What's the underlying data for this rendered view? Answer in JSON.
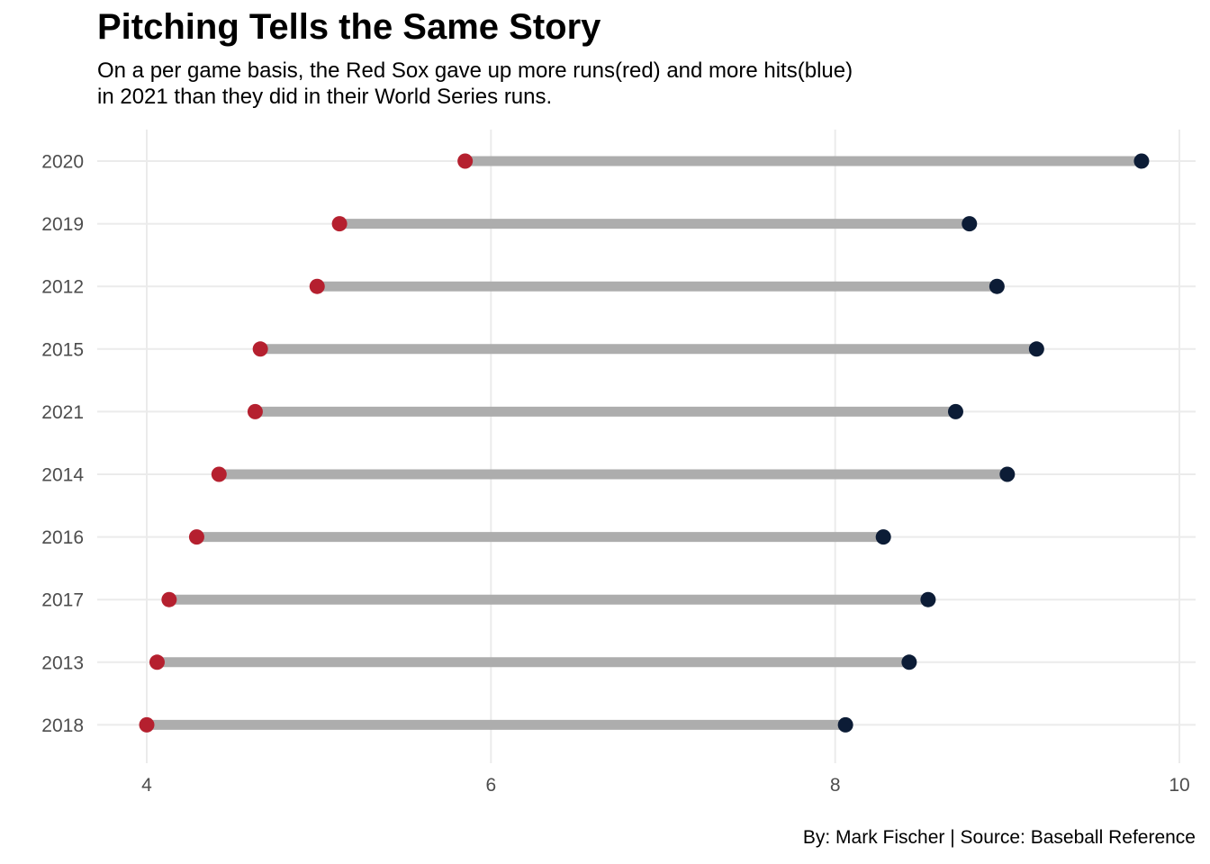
{
  "chart_data": {
    "type": "dumbbell",
    "title": "Pitching Tells the Same Story",
    "subtitle_lines": [
      "On a per game basis, the Red Sox gave up more runs(red) and more hits(blue)",
      "in 2021 than they did in their World Series runs."
    ],
    "caption": "By: Mark Fischer | Source: Baseball Reference",
    "xlabel": "",
    "ylabel": "",
    "xlim": [
      3.6,
      10.03
    ],
    "xticks": [
      4,
      6,
      8,
      10
    ],
    "grid": true,
    "categories": [
      "2020",
      "2019",
      "2012",
      "2015",
      "2021",
      "2014",
      "2016",
      "2017",
      "2013",
      "2018"
    ],
    "series": [
      {
        "values": [
          5.85,
          5.12,
          4.99,
          4.66,
          4.63,
          4.42,
          4.29,
          4.13,
          4.06,
          4.0
        ]
      },
      {
        "values": [
          9.78,
          8.78,
          8.94,
          9.17,
          8.7,
          9.0,
          8.28,
          8.54,
          8.43,
          8.06
        ]
      }
    ],
    "colors": {
      "runs": "#b5202f",
      "hits": "#0c1c36",
      "segment": "#adadad",
      "grid": "#ebebeb",
      "tick_text": "#4d4d4d"
    }
  }
}
